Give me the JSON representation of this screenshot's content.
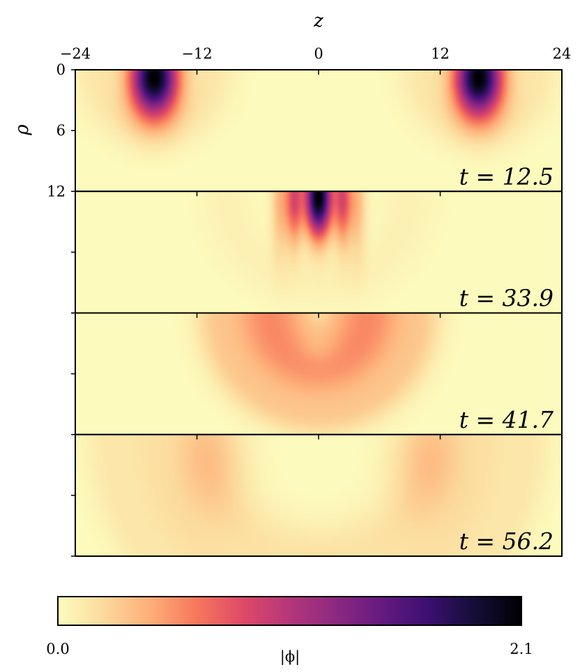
{
  "chart_data": {
    "type": "heatmap",
    "x_axis": {
      "label": "z",
      "range": [
        -24,
        24
      ],
      "ticks": [
        -24,
        -12,
        0,
        12,
        24
      ],
      "tick_labels": [
        "−24",
        "−12",
        "0",
        "12",
        "24"
      ],
      "position": "top"
    },
    "y_axis": {
      "label": "ρ",
      "range": [
        0,
        12
      ],
      "ticks": [
        0,
        6,
        12
      ],
      "tick_labels": [
        "0",
        "6",
        "12"
      ],
      "inverted": true
    },
    "panels": [
      {
        "time_label": "t = 12.5",
        "t": 12.5,
        "blobs": [
          {
            "z": -16.2,
            "rho": 0.8,
            "sz": 1.6,
            "sr": 2.6,
            "peak": 2.1
          },
          {
            "z": 15.8,
            "rho": 0.8,
            "sz": 1.6,
            "sr": 2.6,
            "peak": 2.1
          }
        ],
        "rings": [
          {
            "z": -16.2,
            "r": 5.5,
            "w": 1.8,
            "amp": 0.12
          },
          {
            "z": 15.8,
            "r": 5.5,
            "w": 1.8,
            "amp": 0.12
          }
        ]
      },
      {
        "time_label": "t = 33.9",
        "t": 33.9,
        "blobs": [
          {
            "z": 0,
            "rho": 0.6,
            "sz": 0.9,
            "sr": 2.6,
            "peak": 2.1
          },
          {
            "z": -2.4,
            "rho": 0.8,
            "sz": 0.6,
            "sr": 3.0,
            "peak": 0.8
          },
          {
            "z": 2.4,
            "rho": 0.8,
            "sz": 0.6,
            "sr": 3.0,
            "peak": 0.8
          },
          {
            "z": -3.8,
            "rho": 1.2,
            "sz": 0.6,
            "sr": 3.5,
            "peak": 0.35
          },
          {
            "z": 3.8,
            "rho": 1.2,
            "sz": 0.6,
            "sr": 3.5,
            "peak": 0.35
          }
        ],
        "rings": [
          {
            "z": 0,
            "r": 9,
            "w": 2.0,
            "amp": 0.06
          }
        ]
      },
      {
        "time_label": "t = 41.7",
        "t": 41.7,
        "blobs": [
          {
            "z": 0,
            "rho": 3.5,
            "sz": 1.5,
            "sr": 1.2,
            "peak": -0.12
          }
        ],
        "rings": [
          {
            "z": 0,
            "r": 4.8,
            "w": 3.2,
            "amp": 0.55
          },
          {
            "z": 0,
            "r": 10.5,
            "w": 1.3,
            "amp": 0.15
          }
        ]
      },
      {
        "time_label": "t = 56.2",
        "t": 56.2,
        "blobs": [
          {
            "z": -10.5,
            "rho": 2.5,
            "sz": 2.5,
            "sr": 4,
            "peak": 0.2
          },
          {
            "z": 10.5,
            "rho": 2.5,
            "sz": 2.5,
            "sr": 4,
            "peak": 0.2
          }
        ],
        "rings": [
          {
            "z": 0,
            "r": 12,
            "w": 2.5,
            "amp": 0.14
          },
          {
            "z": 0,
            "r": 17,
            "w": 2.0,
            "amp": 0.12
          },
          {
            "z": 0,
            "r": 21,
            "w": 1.6,
            "amp": 0.1
          }
        ]
      }
    ],
    "colorbar": {
      "label": "|ϕ|",
      "min": 0.0,
      "max": 2.1,
      "min_label": "0.0",
      "max_label": "2.1",
      "colormap": "magma_r"
    },
    "colormap_stops": [
      "#fcfdbf",
      "#fcd99c",
      "#fdae78",
      "#f7775c",
      "#de4968",
      "#b5367a",
      "#8c2981",
      "#641a80",
      "#3b0f70",
      "#140e36",
      "#000004"
    ]
  }
}
